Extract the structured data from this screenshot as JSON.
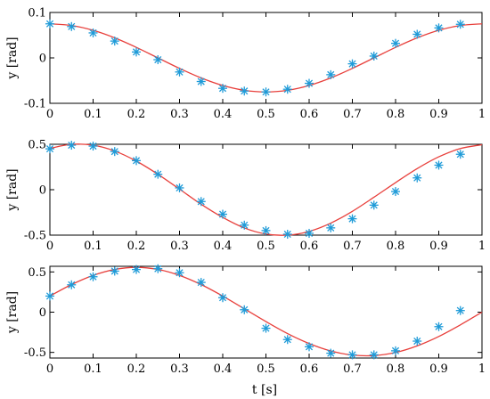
{
  "figure": {
    "xlabel": "t [s]"
  },
  "chart_data": [
    {
      "type": "line",
      "title": "",
      "xlabel": "",
      "ylabel": "y [rad]",
      "xlim": [
        0,
        1
      ],
      "ylim": [
        -0.1,
        0.1
      ],
      "xticks": [
        "0",
        "0.1",
        "0.2",
        "0.3",
        "0.4",
        "0.5",
        "0.6",
        "0.7",
        "0.8",
        "0.9",
        "1"
      ],
      "yticks": [
        {
          "value": 0.1,
          "label": "0.1"
        },
        {
          "value": 0,
          "label": "0"
        },
        {
          "value": -0.1,
          "label": "-0.1"
        }
      ],
      "grid": false,
      "line": {
        "x": [
          0,
          0.05,
          0.1,
          0.15,
          0.2,
          0.25,
          0.3,
          0.35,
          0.4,
          0.45,
          0.5,
          0.55,
          0.6,
          0.65,
          0.7,
          0.75,
          0.8,
          0.85,
          0.9,
          0.95,
          1.0
        ],
        "y": [
          0.075,
          0.0713,
          0.0607,
          0.0441,
          0.0232,
          0.0,
          -0.0232,
          -0.0441,
          -0.0607,
          -0.0713,
          -0.075,
          -0.0713,
          -0.0607,
          -0.0441,
          -0.0232,
          0.0,
          0.0232,
          0.0441,
          0.0607,
          0.0713,
          0.075
        ],
        "color": "#e8403c"
      },
      "markers": {
        "x": [
          0,
          0.05,
          0.1,
          0.15,
          0.2,
          0.25,
          0.3,
          0.35,
          0.4,
          0.45,
          0.5,
          0.55,
          0.6,
          0.65,
          0.7,
          0.75,
          0.8,
          0.85,
          0.9,
          0.95
        ],
        "y": [
          0.075,
          0.069,
          0.055,
          0.037,
          0.013,
          -0.004,
          -0.031,
          -0.052,
          -0.067,
          -0.073,
          -0.075,
          -0.069,
          -0.056,
          -0.037,
          -0.013,
          0.004,
          0.032,
          0.052,
          0.066,
          0.074
        ],
        "color": "#1f9bd8",
        "symbol": "asterisk"
      }
    },
    {
      "type": "line",
      "title": "",
      "xlabel": "",
      "ylabel": "y [rad]",
      "xlim": [
        0,
        1
      ],
      "ylim": [
        -0.5,
        0.5
      ],
      "xticks": [
        "0",
        "0.1",
        "0.2",
        "0.3",
        "0.4",
        "0.5",
        "0.6",
        "0.7",
        "0.8",
        "0.9",
        "1"
      ],
      "yticks": [
        {
          "value": 0.5,
          "label": "0.5"
        },
        {
          "value": 0,
          "label": "0"
        },
        {
          "value": -0.5,
          "label": "-0.5"
        }
      ],
      "grid": false,
      "line": {
        "x": [
          0,
          0.05,
          0.1,
          0.15,
          0.2,
          0.25,
          0.3,
          0.35,
          0.4,
          0.45,
          0.5,
          0.55,
          0.6,
          0.65,
          0.7,
          0.75,
          0.8,
          0.85,
          0.9,
          0.95,
          1.0
        ],
        "y": [
          0.455,
          0.5,
          0.49,
          0.426,
          0.315,
          0.17,
          0.006,
          -0.16,
          -0.305,
          -0.421,
          -0.488,
          -0.5,
          -0.459,
          -0.368,
          -0.238,
          -0.083,
          0.078,
          0.232,
          0.362,
          0.453,
          0.495
        ],
        "color": "#e8403c"
      },
      "markers": {
        "x": [
          0,
          0.05,
          0.1,
          0.15,
          0.2,
          0.25,
          0.3,
          0.35,
          0.4,
          0.45,
          0.5,
          0.55,
          0.6,
          0.65,
          0.7,
          0.75,
          0.8,
          0.85,
          0.9,
          0.95
        ],
        "y": [
          0.45,
          0.49,
          0.48,
          0.42,
          0.32,
          0.17,
          0.02,
          -0.13,
          -0.27,
          -0.39,
          -0.45,
          -0.49,
          -0.48,
          -0.42,
          -0.32,
          -0.17,
          -0.02,
          0.13,
          0.27,
          0.39
        ],
        "color": "#1f9bd8",
        "symbol": "asterisk"
      }
    },
    {
      "type": "line",
      "title": "",
      "xlabel": "t [s]",
      "ylabel": "y [rad]",
      "xlim": [
        0,
        1
      ],
      "ylim": [
        -0.57,
        0.57
      ],
      "xticks": [
        "0",
        "0.1",
        "0.2",
        "0.3",
        "0.4",
        "0.5",
        "0.6",
        "0.7",
        "0.8",
        "0.9",
        "1"
      ],
      "yticks": [
        {
          "value": 0.5,
          "label": "0.5"
        },
        {
          "value": 0,
          "label": "0"
        },
        {
          "value": -0.5,
          "label": "-0.5"
        }
      ],
      "grid": false,
      "line": {
        "x": [
          0,
          0.05,
          0.1,
          0.15,
          0.2,
          0.25,
          0.3,
          0.35,
          0.4,
          0.45,
          0.5,
          0.55,
          0.6,
          0.65,
          0.7,
          0.75,
          0.8,
          0.85,
          0.9,
          0.95,
          1.0
        ],
        "y": [
          0.2,
          0.343,
          0.457,
          0.531,
          0.557,
          0.531,
          0.457,
          0.343,
          0.2,
          0.042,
          -0.117,
          -0.266,
          -0.39,
          -0.482,
          -0.533,
          -0.54,
          -0.501,
          -0.419,
          -0.302,
          -0.158,
          0.0
        ],
        "color": "#e8403c"
      },
      "markers": {
        "x": [
          0,
          0.05,
          0.1,
          0.15,
          0.2,
          0.25,
          0.3,
          0.35,
          0.4,
          0.45,
          0.5,
          0.55,
          0.6,
          0.65,
          0.7,
          0.75,
          0.8,
          0.85,
          0.9,
          0.95
        ],
        "y": [
          0.2,
          0.34,
          0.44,
          0.51,
          0.53,
          0.54,
          0.49,
          0.37,
          0.18,
          0.03,
          -0.2,
          -0.34,
          -0.43,
          -0.51,
          -0.53,
          -0.53,
          -0.48,
          -0.36,
          -0.18,
          0.02
        ],
        "color": "#1f9bd8",
        "symbol": "asterisk"
      }
    }
  ]
}
